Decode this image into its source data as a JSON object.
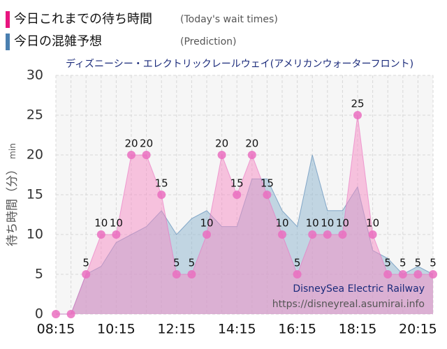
{
  "chart_data": {
    "type": "area",
    "title": "ディズニーシー・エレクトリックレールウェイ(アメリカンウォーターフロント)",
    "y_label": "待ち時間（分）",
    "y_unit": "min",
    "categories": [
      "08:15",
      null,
      null,
      null,
      "10:15",
      null,
      null,
      null,
      "12:15",
      null,
      null,
      null,
      "14:15",
      null,
      null,
      null,
      "16:15",
      null,
      null,
      null,
      "18:15",
      null,
      null,
      null,
      "20:15",
      null
    ],
    "series": [
      {
        "name": "今日の混雑予想",
        "name_en": "(Prediction)",
        "color": "#4a7fb0",
        "fill": "rgba(150,185,210,0.55)",
        "values": [
          0,
          0,
          5,
          6,
          9,
          10,
          11,
          13,
          10,
          12,
          13,
          11,
          11,
          17,
          17,
          13,
          11,
          20,
          13,
          13,
          16,
          8,
          7,
          5,
          6,
          5
        ]
      },
      {
        "name": "今日これまでの待ち時間",
        "name_en": "(Today's wait times)",
        "color": "#e8157f",
        "fill": "rgba(245,140,195,0.5)",
        "point_color": "#ea6fc0",
        "values": [
          0,
          0,
          5,
          10,
          10,
          20,
          20,
          15,
          5,
          5,
          10,
          20,
          15,
          20,
          15,
          10,
          5,
          10,
          10,
          10,
          25,
          10,
          5,
          5,
          5,
          5
        ]
      }
    ],
    "ylim": [
      0,
      30
    ],
    "yticks": [
      0,
      5,
      10,
      15,
      20,
      25,
      30
    ],
    "grid": true,
    "watermark": {
      "title": "DisneySea Electric Railway",
      "url": "https://disneyreal.asumirai.info"
    }
  }
}
